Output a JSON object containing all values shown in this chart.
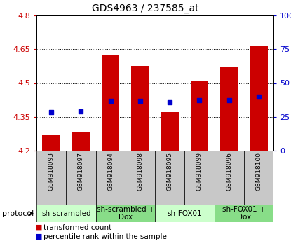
{
  "title": "GDS4963 / 237585_at",
  "samples": [
    "GSM918093",
    "GSM918097",
    "GSM918094",
    "GSM918098",
    "GSM918095",
    "GSM918099",
    "GSM918096",
    "GSM918100"
  ],
  "bar_values": [
    4.27,
    4.28,
    4.625,
    4.575,
    4.37,
    4.51,
    4.57,
    4.665
  ],
  "percentile_values": [
    4.37,
    4.375,
    4.42,
    4.42,
    4.415,
    4.425,
    4.425,
    4.44
  ],
  "ymin": 4.2,
  "ymax": 4.8,
  "yticks": [
    4.2,
    4.35,
    4.5,
    4.65,
    4.8
  ],
  "ytick_labels": [
    "4.2",
    "4.35",
    "4.5",
    "4.65",
    "4.8"
  ],
  "right_yticks": [
    0,
    25,
    50,
    75,
    100
  ],
  "right_ytick_labels": [
    "0",
    "25",
    "50",
    "75",
    "100%"
  ],
  "grid_yticks": [
    4.35,
    4.5,
    4.65
  ],
  "bar_color": "#cc0000",
  "percentile_color": "#0000cc",
  "bar_width": 0.6,
  "protocols": [
    {
      "label": "sh-scrambled",
      "start": 0,
      "end": 2,
      "color": "#ccffcc"
    },
    {
      "label": "sh-scrambled +\nDox",
      "start": 2,
      "end": 4,
      "color": "#88dd88"
    },
    {
      "label": "sh-FOX01",
      "start": 4,
      "end": 6,
      "color": "#ccffcc"
    },
    {
      "label": "sh-FOX01 +\nDox",
      "start": 6,
      "end": 8,
      "color": "#88dd88"
    }
  ],
  "legend_items": [
    {
      "label": "  transformed count",
      "color": "#cc0000"
    },
    {
      "label": "  percentile rank within the sample",
      "color": "#0000cc"
    }
  ],
  "protocol_label": "protocol",
  "axes_label_color_left": "#cc0000",
  "axes_label_color_right": "#0000cc",
  "label_box_color": "#c8c8c8",
  "title_fontsize": 10,
  "tick_fontsize": 8,
  "sample_fontsize": 6.5,
  "protocol_fontsize": 7.5,
  "legend_fontsize": 7.5
}
